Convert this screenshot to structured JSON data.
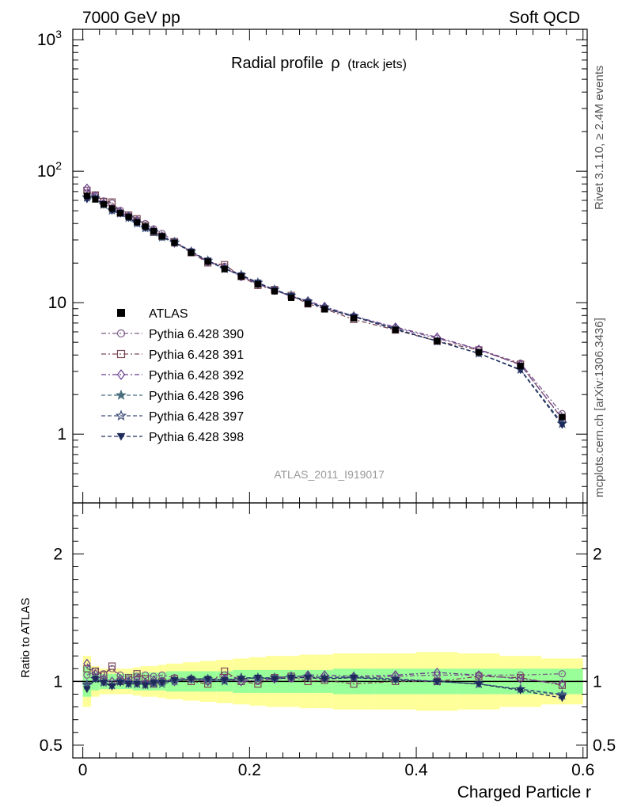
{
  "header": {
    "left": "7000 GeV pp",
    "right": "Soft QCD"
  },
  "side_labels": {
    "top": "Rivet 3.1.10, ≥ 2.4M events",
    "bottom": "mcplots.cern.ch [arXiv:1306.3436]"
  },
  "chart_data": {
    "type": "line",
    "title": "Radial profile ρ (track jets)",
    "title_main": "Radial profile",
    "title_rho": "ρ",
    "title_paren": "(track jets)",
    "analysis_id": "ATLAS_2011_I919017",
    "xlabel": "Charged Particle r",
    "xlim": [
      -0.012,
      0.605
    ],
    "x_ticks": [
      0,
      0.2,
      0.4,
      0.6
    ],
    "x_tick_labels": [
      "0",
      "0.2",
      "0.4",
      "0.6"
    ],
    "main_panel": {
      "yscale": "log",
      "ylim": [
        0.3,
        1200
      ],
      "y_tick_labels": [
        {
          "value": 1000,
          "base": "10",
          "exp": "3"
        },
        {
          "value": 100,
          "base": "10",
          "exp": "2"
        },
        {
          "value": 10,
          "base": "10",
          "exp": ""
        },
        {
          "value": 1,
          "base": "1",
          "exp": ""
        }
      ]
    },
    "ratio_panel": {
      "ylabel": "Ratio to ATLAS",
      "ylim": [
        0.4,
        2.4
      ],
      "y_ticks": [
        0.5,
        1,
        2
      ],
      "y_tick_labels": [
        "0.5",
        "1",
        "2"
      ]
    },
    "x": [
      0.005,
      0.015,
      0.025,
      0.035,
      0.045,
      0.055,
      0.065,
      0.075,
      0.085,
      0.095,
      0.11,
      0.13,
      0.15,
      0.17,
      0.19,
      0.21,
      0.23,
      0.25,
      0.27,
      0.29,
      0.325,
      0.375,
      0.425,
      0.475,
      0.525,
      0.575
    ],
    "bin_edges": [
      0,
      0.01,
      0.02,
      0.03,
      0.04,
      0.05,
      0.06,
      0.07,
      0.08,
      0.09,
      0.1,
      0.12,
      0.14,
      0.16,
      0.18,
      0.2,
      0.22,
      0.24,
      0.26,
      0.28,
      0.3,
      0.35,
      0.4,
      0.45,
      0.5,
      0.55,
      0.6
    ],
    "atlas": {
      "name": "ATLAS",
      "values": [
        65,
        61,
        56,
        52,
        48,
        45,
        41,
        38,
        35,
        32,
        28.5,
        24,
        20.5,
        18,
        15.8,
        13.8,
        12.2,
        10.9,
        9.8,
        8.9,
        7.6,
        6.2,
        5.1,
        4.2,
        3.3,
        1.35
      ],
      "band_inner": [
        0.12,
        0.07,
        0.06,
        0.06,
        0.06,
        0.06,
        0.07,
        0.07,
        0.07,
        0.07,
        0.08,
        0.08,
        0.08,
        0.08,
        0.09,
        0.09,
        0.09,
        0.09,
        0.09,
        0.09,
        0.1,
        0.1,
        0.1,
        0.1,
        0.1,
        0.1
      ],
      "band_outer": [
        0.2,
        0.12,
        0.1,
        0.1,
        0.1,
        0.1,
        0.11,
        0.12,
        0.12,
        0.13,
        0.14,
        0.15,
        0.16,
        0.17,
        0.18,
        0.19,
        0.2,
        0.2,
        0.21,
        0.21,
        0.22,
        0.22,
        0.23,
        0.22,
        0.2,
        0.18
      ]
    },
    "series": [
      {
        "name": "Pythia 6.428 390",
        "color": "#7e5b88",
        "marker": "circle-open",
        "dash": "6,3,2,3",
        "ratio": [
          1.05,
          1.08,
          1.06,
          1.1,
          1.05,
          1.02,
          1.04,
          1.05,
          1.04,
          1.05,
          1.03,
          1.02,
          1.0,
          1.05,
          1.02,
          1.0,
          1.03,
          1.02,
          1.04,
          1.02,
          1.03,
          1.04,
          1.05,
          1.05,
          1.05,
          1.06
        ]
      },
      {
        "name": "Pythia 6.428 391",
        "color": "#7a4a56",
        "marker": "square-open",
        "dash": "6,3,2,3",
        "ratio": [
          1.1,
          1.08,
          1.05,
          1.12,
          1.0,
          1.03,
          1.06,
          1.02,
          0.98,
          1.0,
          1.02,
          1.0,
          0.98,
          1.08,
          1.0,
          0.98,
          1.03,
          1.04,
          1.0,
          1.01,
          0.98,
          1.0,
          1.0,
          1.04,
          1.03,
          0.97
        ]
      },
      {
        "name": "Pythia 6.428 392",
        "color": "#6a3f8e",
        "marker": "diamond-open",
        "dash": "6,3,2,3",
        "ratio": [
          1.14,
          1.06,
          1.02,
          1.0,
          1.02,
          1.0,
          1.02,
          0.99,
          1.01,
          1.0,
          1.0,
          1.02,
          1.0,
          1.02,
          1.0,
          1.01,
          1.02,
          1.03,
          1.05,
          1.05,
          1.04,
          1.05,
          1.07,
          1.05,
          1.02,
          0.98
        ]
      },
      {
        "name": "Pythia 6.428 396",
        "color": "#4a7080",
        "marker": "star-filled",
        "dash": "5,3",
        "ratio": [
          0.98,
          1.02,
          0.99,
          0.97,
          1.0,
          0.98,
          0.99,
          0.97,
          0.98,
          0.98,
          1.0,
          1.02,
          1.01,
          1.0,
          1.03,
          1.02,
          1.03,
          1.04,
          1.04,
          1.03,
          1.04,
          1.02,
          1.0,
          0.98,
          0.94,
          0.9
        ]
      },
      {
        "name": "Pythia 6.428 397",
        "color": "#3e4e7c",
        "marker": "star-open",
        "dash": "5,3",
        "ratio": [
          0.97,
          1.02,
          1.0,
          0.97,
          1.0,
          0.99,
          0.98,
          0.98,
          0.99,
          1.0,
          1.01,
          1.02,
          1.02,
          1.01,
          1.03,
          1.03,
          1.03,
          1.04,
          1.04,
          1.03,
          1.03,
          1.02,
          1.0,
          0.98,
          0.94,
          0.89
        ]
      },
      {
        "name": "Pythia 6.428 398",
        "color": "#1e2a5a",
        "marker": "triangle-down",
        "dash": "5,3",
        "ratio": [
          0.94,
          1.02,
          0.99,
          0.96,
          0.99,
          0.98,
          0.98,
          0.97,
          0.99,
          0.99,
          1.01,
          1.02,
          1.02,
          1.01,
          1.02,
          1.03,
          1.02,
          1.03,
          1.03,
          1.02,
          1.03,
          1.01,
          1.0,
          0.98,
          0.93,
          0.87
        ]
      }
    ],
    "colors": {
      "band_outer": "#ffff99",
      "band_inner": "#99ff99",
      "data": "#000000"
    },
    "legend_position": "left"
  }
}
